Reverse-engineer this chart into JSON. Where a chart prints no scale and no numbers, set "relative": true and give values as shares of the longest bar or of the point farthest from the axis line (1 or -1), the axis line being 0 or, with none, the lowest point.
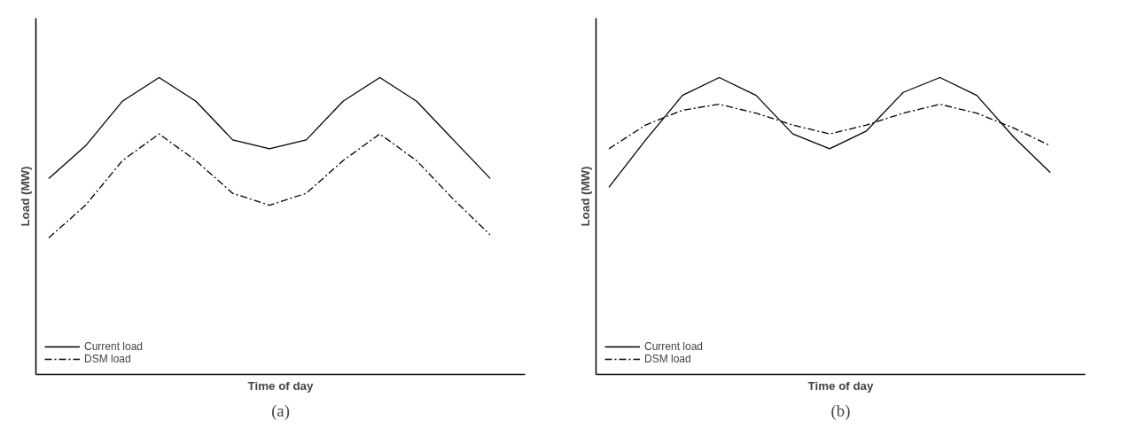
{
  "chart_data": [
    {
      "type": "line",
      "relative": true,
      "xlabel": "Time of day",
      "ylabel": "Load (MW)",
      "categories": [
        null,
        null,
        null,
        null,
        null,
        null,
        null,
        null,
        null,
        null,
        null,
        null,
        null
      ],
      "legend": "bottom left",
      "marker": "none",
      "annotations": [
        "(a)"
      ],
      "series": [
        {
          "name": "Current load",
          "color": "#000000",
          "line_style": "solid",
          "values": [
            0.66,
            0.77,
            0.92,
            1,
            0.92,
            0.79,
            0.76,
            0.79,
            0.92,
            1,
            0.92,
            0.79,
            0.66
          ]
        },
        {
          "name": "DSM load",
          "color": "#000000",
          "line_style": "dashed",
          "values": [
            0.46,
            0.57,
            0.72,
            0.81,
            0.72,
            0.61,
            0.57,
            0.61,
            0.72,
            0.81,
            0.72,
            0.59,
            0.47
          ]
        }
      ]
    },
    {
      "type": "line",
      "relative": true,
      "xlabel": "Time of day",
      "ylabel": "Load (MW)",
      "categories": [
        null,
        null,
        null,
        null,
        null,
        null,
        null,
        null,
        null,
        null,
        null,
        null,
        null
      ],
      "legend": "bottom left",
      "marker": "none",
      "annotations": [
        "(b)"
      ],
      "series": [
        {
          "name": "Current load",
          "color": "#000000",
          "line_style": "solid",
          "values": [
            0.63,
            0.79,
            0.94,
            1,
            0.94,
            0.81,
            0.76,
            0.82,
            0.95,
            1,
            0.94,
            0.8,
            0.68
          ]
        },
        {
          "name": "DSM load",
          "color": "#000000",
          "line_style": "dashed",
          "values": [
            0.76,
            0.84,
            0.89,
            0.91,
            0.88,
            0.84,
            0.81,
            0.84,
            0.88,
            0.91,
            0.88,
            0.83,
            0.77
          ]
        }
      ]
    }
  ]
}
